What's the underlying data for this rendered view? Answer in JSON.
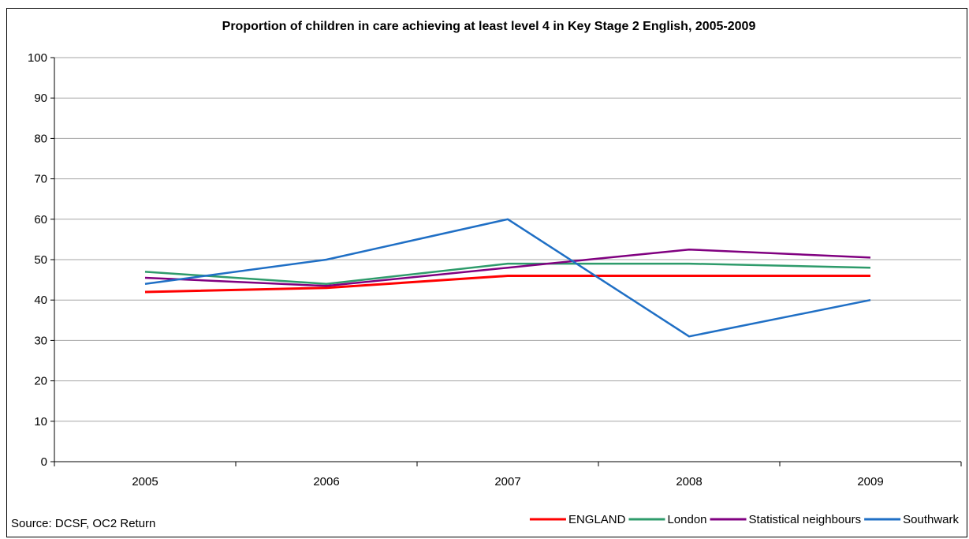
{
  "chart_data": {
    "type": "line",
    "title": "Proportion of children in care achieving at least  level 4 in Key Stage 2 English, 2005-2009",
    "xlabel": "",
    "ylabel": "",
    "categories": [
      "2005",
      "2006",
      "2007",
      "2008",
      "2009"
    ],
    "ylim": [
      0,
      100
    ],
    "yticks": [
      0,
      10,
      20,
      30,
      40,
      50,
      60,
      70,
      80,
      90,
      100
    ],
    "grid": true,
    "legend_position": "bottom-right",
    "series": [
      {
        "name": "ENGLAND",
        "color": "#ff0000",
        "values": [
          42,
          43,
          46,
          46,
          46
        ]
      },
      {
        "name": "London",
        "color": "#2e9b6b",
        "values": [
          47,
          44,
          49,
          49,
          48
        ]
      },
      {
        "name": "Statistical neighbours",
        "color": "#800080",
        "values": [
          45.5,
          43.5,
          48,
          52.5,
          50.5
        ]
      },
      {
        "name": "Southwark",
        "color": "#1f6fc5",
        "values": [
          44,
          50,
          60,
          31,
          40
        ]
      }
    ]
  },
  "source_note": "Source: DCSF, OC2 Return"
}
